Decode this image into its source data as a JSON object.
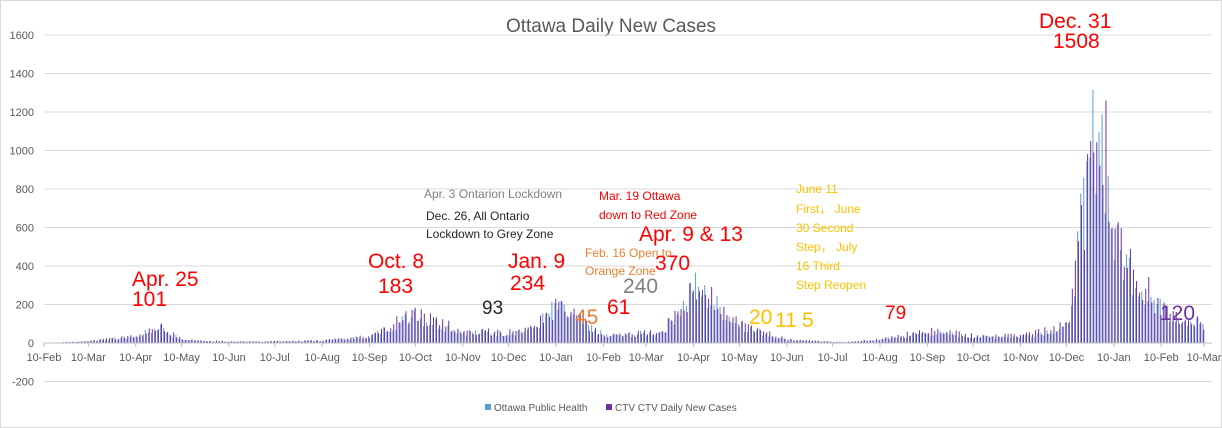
{
  "chart_data": {
    "type": "bar",
    "title": "Ottawa Daily New Cases",
    "xlabel": "",
    "ylabel": "",
    "ylim": [
      -200,
      1600
    ],
    "yticks": [
      "-200",
      "0",
      "200",
      "400",
      "600",
      "800",
      "1000",
      "1200",
      "1400",
      "1600"
    ],
    "xticks": [
      "10-Feb",
      "10-Mar",
      "10-Apr",
      "10-May",
      "10-Jun",
      "10-Jul",
      "10-Aug",
      "10-Sep",
      "10-Oct",
      "10-Nov",
      "10-Dec",
      "10-Jan",
      "10-Feb",
      "10-Mar",
      "10-Apr",
      "10-May",
      "10-Jun",
      "10-Jul",
      "10-Aug",
      "10-Sep",
      "10-Oct",
      "10-Nov",
      "10-Dec",
      "10-Jan",
      "10-Feb",
      "10-Mar"
    ],
    "grid": true,
    "legend_position": "bottom",
    "colors": {
      "ottawa": "#5b9bd5",
      "ctv": "#7030a0"
    },
    "series": [
      {
        "name": "Ottawa Public Health",
        "color": "#5b9bd5",
        "x": [
          "10-Feb",
          "10-Mar",
          "10-Apr",
          "25-Apr",
          "10-May",
          "10-Jun",
          "10-Jul",
          "10-Aug",
          "10-Sep",
          "08-Oct",
          "10-Nov",
          "10-Dec",
          "26-Dec",
          "09-Jan",
          "10-Feb",
          "16-Feb",
          "10-Mar",
          "19-Mar",
          "03-Apr",
          "09-Apr",
          "10-May",
          "10-Jun",
          "11-Jun",
          "30-Jun",
          "16-Jul",
          "10-Aug",
          "10-Sep",
          "10-Oct",
          "10-Nov",
          "10-Dec",
          "31-Dec",
          "10-Jan",
          "10-Feb",
          "10-Mar"
        ],
        "values": [
          0,
          10,
          40,
          95,
          20,
          8,
          10,
          15,
          40,
          170,
          70,
          60,
          90,
          225,
          50,
          45,
          60,
          61,
          240,
          365,
          110,
          15,
          20,
          11,
          5,
          20,
          65,
          40,
          40,
          100,
          1520,
          600,
          200,
          115
        ]
      },
      {
        "name": "CTV CTV Daily New Cases",
        "color": "#7030a0",
        "x": [
          "10-Feb",
          "10-Mar",
          "10-Apr",
          "25-Apr",
          "10-May",
          "10-Jun",
          "10-Jul",
          "10-Aug",
          "10-Sep",
          "08-Oct",
          "10-Nov",
          "10-Dec",
          "26-Dec",
          "09-Jan",
          "10-Feb",
          "16-Feb",
          "10-Mar",
          "19-Mar",
          "03-Apr",
          "09-Apr",
          "10-May",
          "10-Jun",
          "11-Jun",
          "30-Jun",
          "16-Jul",
          "10-Aug",
          "10-Sep",
          "10-Oct",
          "10-Nov",
          "10-Dec",
          "31-Dec",
          "10-Jan",
          "10-Feb",
          "10-Mar"
        ],
        "values": [
          0,
          12,
          45,
          101,
          22,
          9,
          11,
          16,
          45,
          183,
          75,
          65,
          93,
          234,
          55,
          45,
          65,
          61,
          240,
          370,
          115,
          20,
          20,
          11,
          5,
          22,
          79,
          45,
          45,
          110,
          1508,
          620,
          210,
          120
        ]
      }
    ],
    "annotations": [
      {
        "text": "Apr. 25",
        "date": "25-Apr",
        "color": "#ff0000"
      },
      {
        "text": "101",
        "date": "25-Apr",
        "color": "#ff0000"
      },
      {
        "text": "Oct. 8",
        "date": "08-Oct",
        "color": "#ff0000"
      },
      {
        "text": "183",
        "date": "08-Oct",
        "color": "#ff0000"
      },
      {
        "text": "93",
        "date": "26-Dec",
        "color": "#262626"
      },
      {
        "text": "Jan. 9",
        "date": "09-Jan",
        "color": "#ff0000"
      },
      {
        "text": "234",
        "date": "09-Jan",
        "color": "#ff0000"
      },
      {
        "text": "45",
        "date": "16-Feb",
        "color": "#ed7d31"
      },
      {
        "text": "61",
        "date": "19-Mar",
        "color": "#ff0000"
      },
      {
        "text": "240",
        "date": "03-Apr",
        "color": "#7f7f7f"
      },
      {
        "text": "Apr. 9 & 13",
        "date": "09-Apr",
        "color": "#ff0000"
      },
      {
        "text": "370",
        "date": "09-Apr",
        "color": "#ff0000"
      },
      {
        "text": "20",
        "date": "11-Jun",
        "color": "#ffc000"
      },
      {
        "text": "11",
        "date": "30-Jun",
        "color": "#ffc000"
      },
      {
        "text": "5",
        "date": "16-Jul",
        "color": "#ffc000"
      },
      {
        "text": "79",
        "date": "10-Sep",
        "color": "#ff0000"
      },
      {
        "text": "Dec. 31",
        "date": "31-Dec",
        "color": "#ff0000"
      },
      {
        "text": "1508",
        "date": "31-Dec",
        "color": "#ff0000"
      },
      {
        "text": "120",
        "date": "10-Mar",
        "color": "#7030a0"
      },
      {
        "text": "Apr. 3 Ontarion Lockdown",
        "color": "#7f7f7f"
      },
      {
        "text": "Dec. 26, All Ontario",
        "color": "#262626"
      },
      {
        "text": "Lockdown to Grey Zone",
        "color": "#262626"
      },
      {
        "text": "Mar. 19 Ottawa",
        "color": "#ff0000"
      },
      {
        "text": "down to Red Zone",
        "color": "#ff0000"
      },
      {
        "text": "Feb. 16 Open to",
        "color": "#ed7d31"
      },
      {
        "text": "Orange Zone",
        "color": "#ed7d31"
      },
      {
        "text": "June 11",
        "color": "#ffc000"
      },
      {
        "text": "First， June",
        "color": "#ffc000"
      },
      {
        "text": "30 Second",
        "color": "#ffc000"
      },
      {
        "text": "Step， July",
        "color": "#ffc000"
      },
      {
        "text": "16 Third",
        "color": "#ffc000"
      },
      {
        "text": "Step Reopen",
        "color": "#ffc000"
      }
    ]
  }
}
